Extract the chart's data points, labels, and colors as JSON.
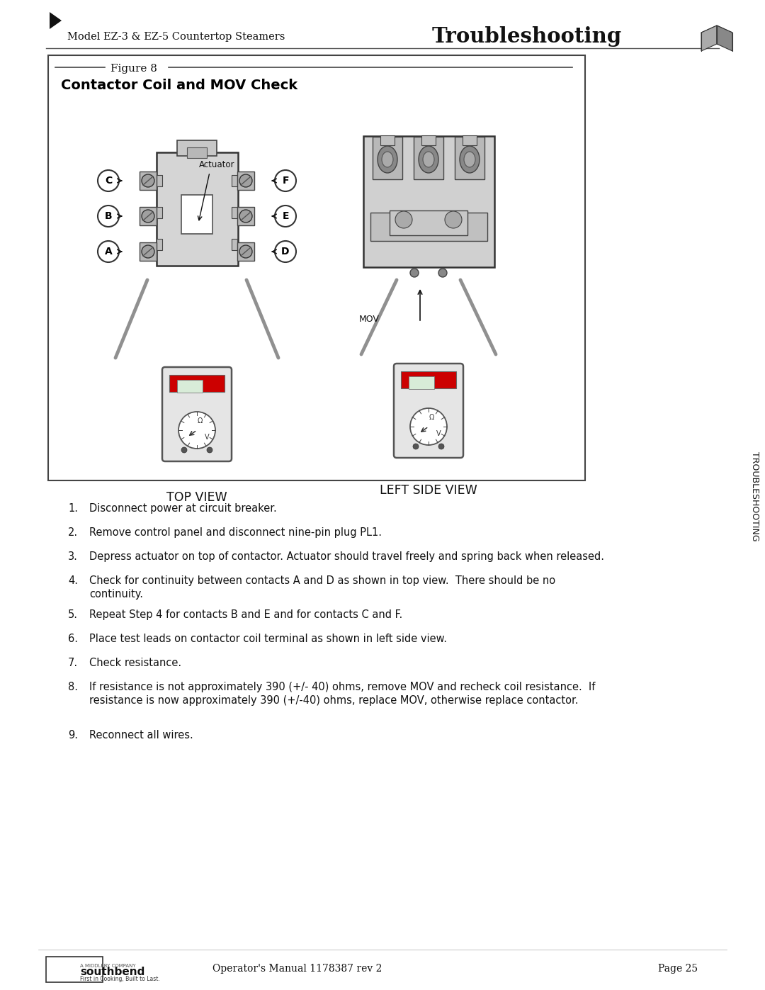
{
  "page_title_left": "Model EZ-3 & EZ-5 Countertop Steamers",
  "page_title_right": "Troubleshooting",
  "figure_label": "Figure 8",
  "figure_title": "Contactor Coil and MOV Check",
  "top_view_label": "TOP VIEW",
  "left_side_view_label": "LEFT SIDE VIEW",
  "actuator_label": "Actuator",
  "mov_label": "MOV",
  "contacts_left": [
    "C",
    "B",
    "A"
  ],
  "contacts_right": [
    "F",
    "E",
    "D"
  ],
  "instructions": [
    "Disconnect power at circuit breaker.",
    "Remove control panel and disconnect nine-pin plug PL1.",
    "Depress actuator on top of contactor. Actuator should travel freely and spring back when released.",
    "Check for continuity between contacts A and D as shown in top view.  There should be no\ncontinuity.",
    "Repeat Step 4 for contacts B and E and for contacts C and F.",
    "Place test leads on contactor coil terminal as shown in left side view.",
    "Check resistance.",
    "If resistance is not approximately 390 (+/- 40) ohms, remove MOV and recheck coil resistance.  If\nresistance is now approximately 390 (+/-40) ohms, replace MOV, otherwise replace contactor.",
    "Reconnect all wires."
  ],
  "footer_manual": "Operator's Manual 1178387 rev 2",
  "footer_page": "Page 25",
  "sidebar_text": "TROUBLESHOOTING",
  "bg_color": "#ffffff",
  "box_border_color": "#000000",
  "red_accent": "#cc0000",
  "gray_light": "#e0e0e0",
  "gray_mid": "#b0b0b0",
  "gray_dark": "#808080"
}
